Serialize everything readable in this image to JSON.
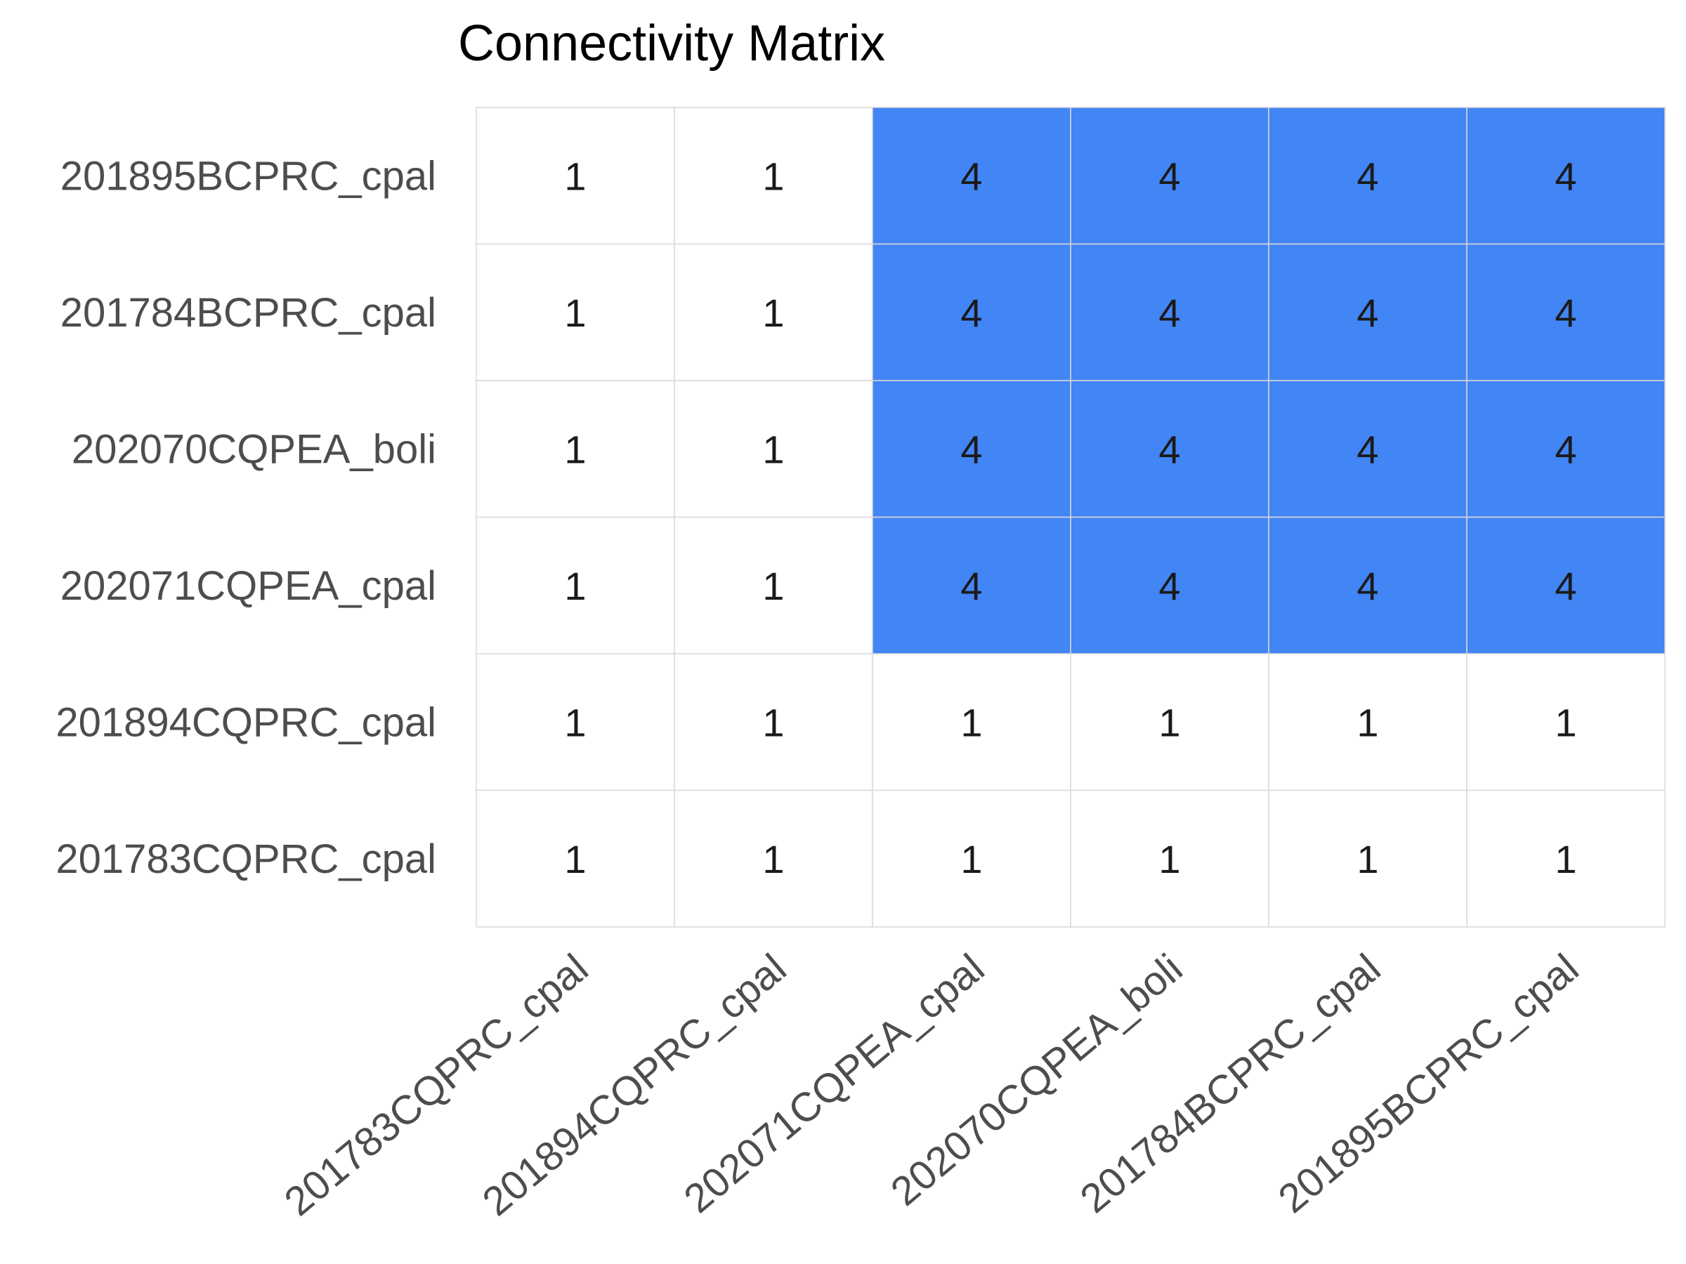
{
  "chart_data": {
    "type": "heatmap",
    "title": "Connectivity Matrix",
    "xlabel": "",
    "ylabel": "",
    "x_categories": [
      "201783CQPRC_cpal",
      "201894CQPRC_cpal",
      "202071CQPEA_cpal",
      "202070CQPEA_boli",
      "201784BCPRC_cpal",
      "201895BCPRC_cpal"
    ],
    "y_categories": [
      "201895BCPRC_cpal",
      "201784BCPRC_cpal",
      "202070CQPEA_boli",
      "202071CQPEA_cpal",
      "201894CQPRC_cpal",
      "201783CQPRC_cpal"
    ],
    "values": [
      [
        1,
        1,
        4,
        4,
        4,
        4
      ],
      [
        1,
        1,
        4,
        4,
        4,
        4
      ],
      [
        1,
        1,
        4,
        4,
        4,
        4
      ],
      [
        1,
        1,
        4,
        4,
        4,
        4
      ],
      [
        1,
        1,
        1,
        1,
        1,
        1
      ],
      [
        1,
        1,
        1,
        1,
        1,
        1
      ]
    ],
    "colors": {
      "low": "#ffffff",
      "high": "#4285f4",
      "grid": "#d9d9d9"
    },
    "legend": "none",
    "grid": true
  }
}
